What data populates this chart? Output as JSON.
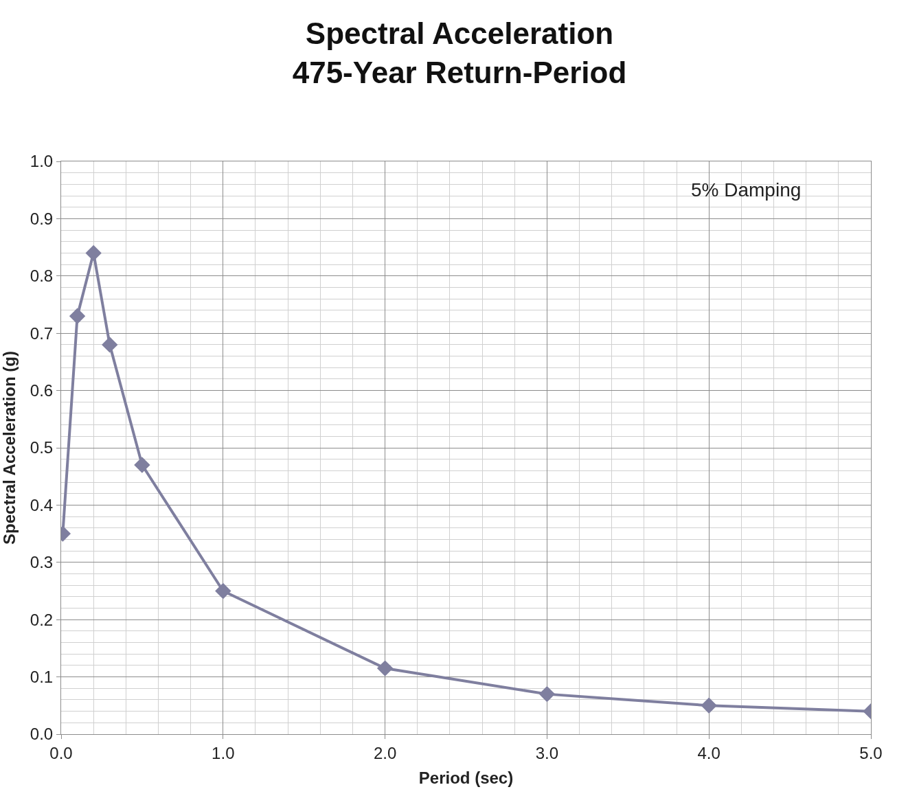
{
  "chart_data": {
    "type": "line",
    "title": "Spectral Acceleration\n475-Year Return-Period",
    "xlabel": "Period (sec)",
    "ylabel": "Spectral Acceleration (g)",
    "x": [
      0.01,
      0.1,
      0.2,
      0.3,
      0.5,
      1.0,
      2.0,
      3.0,
      4.0,
      5.0
    ],
    "series": [
      {
        "color": "#7f7f9f",
        "values": [
          0.35,
          0.73,
          0.84,
          0.68,
          0.47,
          0.25,
          0.115,
          0.07,
          0.05,
          0.04
        ]
      }
    ],
    "xlim": [
      0,
      5
    ],
    "ylim": [
      0,
      1
    ],
    "xticks": [
      {
        "value": 0,
        "label": "0.0"
      },
      {
        "value": 1,
        "label": "1.0"
      },
      {
        "value": 2,
        "label": "2.0"
      },
      {
        "value": 3,
        "label": "3.0"
      },
      {
        "value": 4,
        "label": "4.0"
      },
      {
        "value": 5,
        "label": "5.0"
      }
    ],
    "yticks": [
      {
        "value": 0,
        "label": "0.0"
      },
      {
        "value": 0.1,
        "label": "0.1"
      },
      {
        "value": 0.2,
        "label": "0.2"
      },
      {
        "value": 0.3,
        "label": "0.3"
      },
      {
        "value": 0.4,
        "label": "0.4"
      },
      {
        "value": 0.5,
        "label": "0.5"
      },
      {
        "value": 0.6,
        "label": "0.6"
      },
      {
        "value": 0.7,
        "label": "0.7"
      },
      {
        "value": 0.8,
        "label": "0.8"
      },
      {
        "value": 0.9,
        "label": "0.9"
      },
      {
        "value": 1,
        "label": "1.0"
      }
    ],
    "annotations": [
      "5% Damping"
    ],
    "grid": true,
    "marker": "diamond",
    "line_style": "solid"
  }
}
